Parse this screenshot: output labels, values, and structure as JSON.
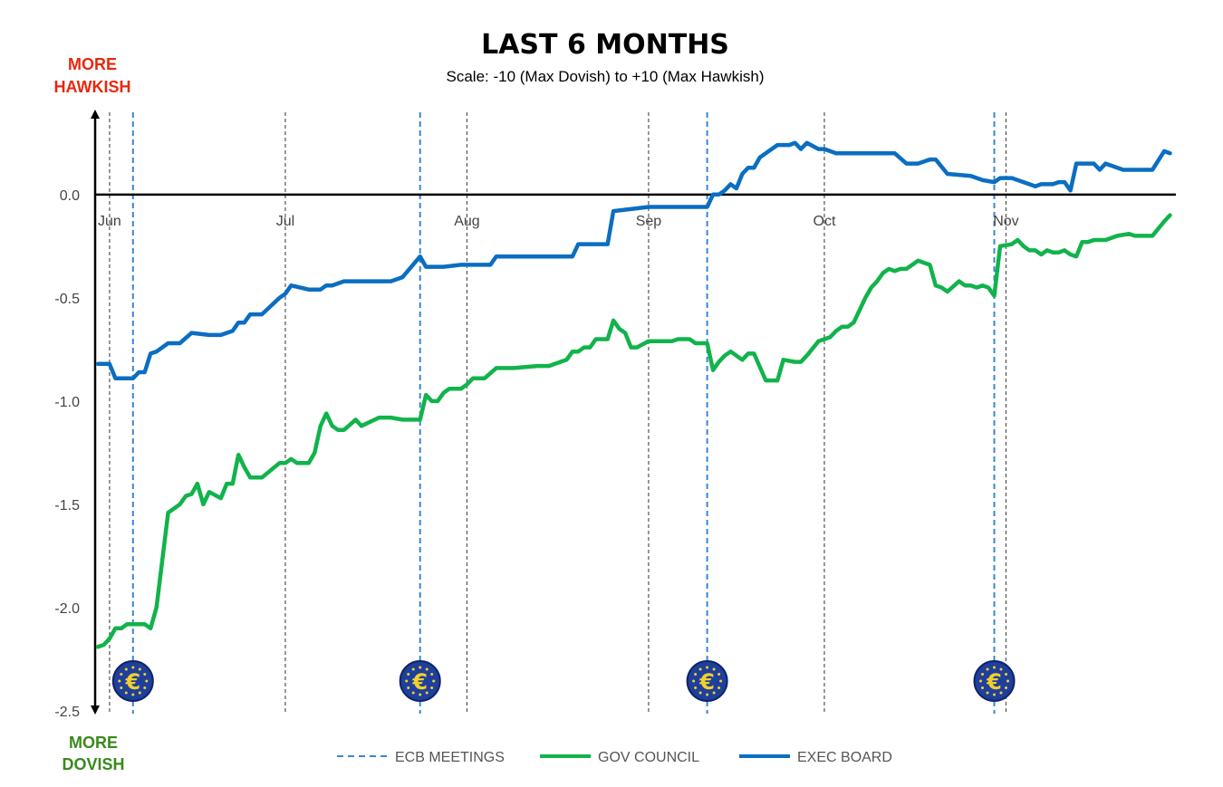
{
  "colors": {
    "gov_council": "#11b34b",
    "exec_board": "#0a6ec2",
    "ecb_meeting": "#3a86d4",
    "hawkish_label": "#e8280f",
    "dovish_label": "#3a8a1c",
    "gridline": "#555555"
  },
  "side_labels": {
    "hawkish_line1": "MORE",
    "hawkish_line2": "HAWKISH",
    "dovish_line1": "MORE",
    "dovish_line2": "DOVISH"
  },
  "chart_data": {
    "type": "line",
    "title": "LAST 6 MONTHS",
    "subtitle": "Scale: -10 (Max Dovish)  to +10 (Max Hawkish)",
    "ylim": [
      -2.5,
      0.35
    ],
    "yticks": [
      "0.0",
      "-0.5",
      "-1.0",
      "-1.5",
      "-2.0",
      "-2.5"
    ],
    "x_range_days": [
      -2,
      182
    ],
    "months": [
      {
        "label": "Jun",
        "day": 0
      },
      {
        "label": "Jul",
        "day": 30
      },
      {
        "label": "Aug",
        "day": 61
      },
      {
        "label": "Sep",
        "day": 92
      },
      {
        "label": "Oct",
        "day": 122
      },
      {
        "label": "Nov",
        "day": 153
      }
    ],
    "ecb_meetings_days": [
      4,
      53,
      102,
      151
    ],
    "series": [
      {
        "name": "EXEC BOARD",
        "x": [
          -2,
          0,
          1,
          2,
          4,
          5,
          6,
          7,
          8,
          10,
          12,
          14,
          17,
          19,
          21,
          22,
          23,
          24,
          26,
          29,
          30,
          31,
          34,
          36,
          37,
          38,
          40,
          48,
          50,
          53,
          54,
          57,
          60,
          65,
          66,
          71,
          79,
          80,
          85,
          86,
          92,
          102,
          103,
          104,
          105,
          106,
          107,
          108,
          109,
          110,
          111,
          112,
          114,
          116,
          117,
          118,
          119,
          121,
          122,
          124,
          126,
          134,
          136,
          138,
          140,
          141,
          143,
          147,
          149,
          151,
          152,
          154,
          157,
          158,
          159,
          161,
          162,
          163,
          164,
          165,
          168,
          169,
          170,
          173,
          178,
          180,
          181
        ],
        "values": [
          -0.82,
          -0.82,
          -0.89,
          -0.89,
          -0.89,
          -0.86,
          -0.86,
          -0.77,
          -0.76,
          -0.72,
          -0.72,
          -0.67,
          -0.68,
          -0.68,
          -0.66,
          -0.62,
          -0.62,
          -0.58,
          -0.58,
          -0.5,
          -0.48,
          -0.44,
          -0.46,
          -0.46,
          -0.44,
          -0.44,
          -0.42,
          -0.42,
          -0.4,
          -0.3,
          -0.35,
          -0.35,
          -0.34,
          -0.34,
          -0.3,
          -0.3,
          -0.3,
          -0.24,
          -0.24,
          -0.08,
          -0.06,
          -0.06,
          0.0,
          0.0,
          0.02,
          0.05,
          0.03,
          0.1,
          0.13,
          0.13,
          0.18,
          0.2,
          0.24,
          0.24,
          0.25,
          0.22,
          0.25,
          0.22,
          0.22,
          0.2,
          0.2,
          0.2,
          0.15,
          0.15,
          0.17,
          0.17,
          0.1,
          0.09,
          0.07,
          0.06,
          0.08,
          0.08,
          0.05,
          0.04,
          0.05,
          0.05,
          0.06,
          0.06,
          0.02,
          0.15,
          0.15,
          0.12,
          0.15,
          0.12,
          0.12,
          0.21,
          0.2
        ]
      },
      {
        "name": "GOV COUNCIL",
        "x": [
          -2,
          -1,
          0,
          1,
          2,
          3,
          4,
          5,
          6,
          7,
          8,
          10,
          11,
          12,
          13,
          14,
          15,
          16,
          17,
          19,
          20,
          21,
          22,
          23,
          24,
          25,
          26,
          29,
          30,
          31,
          32,
          34,
          35,
          36,
          37,
          38,
          39,
          40,
          42,
          43,
          46,
          48,
          50,
          52,
          53,
          54,
          55,
          56,
          57,
          58,
          60,
          61,
          62,
          64,
          66,
          67,
          69,
          73,
          75,
          76,
          78,
          79,
          80,
          81,
          82,
          83,
          84,
          85,
          86,
          87,
          88,
          89,
          90,
          92,
          93,
          94,
          95,
          96,
          97,
          98,
          99,
          100,
          101,
          102,
          103,
          104,
          105,
          106,
          107,
          108,
          109,
          110,
          112,
          113,
          114,
          115,
          117,
          118,
          119,
          121,
          122,
          123,
          124,
          125,
          126,
          127,
          128,
          129,
          130,
          131,
          132,
          133,
          134,
          135,
          136,
          137,
          138,
          139,
          140,
          141,
          142,
          143,
          145,
          146,
          147,
          148,
          149,
          150,
          151,
          152,
          154,
          155,
          156,
          157,
          158,
          159,
          160,
          161,
          162,
          163,
          164,
          165,
          166,
          167,
          168,
          170,
          172,
          174,
          175,
          176,
          178,
          180,
          181
        ],
        "values": [
          -2.19,
          -2.18,
          -2.15,
          -2.1,
          -2.1,
          -2.08,
          -2.08,
          -2.08,
          -2.08,
          -2.1,
          -2.0,
          -1.54,
          -1.52,
          -1.5,
          -1.46,
          -1.45,
          -1.4,
          -1.5,
          -1.44,
          -1.47,
          -1.4,
          -1.4,
          -1.26,
          -1.32,
          -1.37,
          -1.37,
          -1.37,
          -1.3,
          -1.3,
          -1.28,
          -1.3,
          -1.3,
          -1.25,
          -1.12,
          -1.06,
          -1.12,
          -1.14,
          -1.14,
          -1.09,
          -1.12,
          -1.08,
          -1.08,
          -1.09,
          -1.09,
          -1.09,
          -0.97,
          -1.0,
          -1.0,
          -0.96,
          -0.94,
          -0.94,
          -0.92,
          -0.89,
          -0.89,
          -0.84,
          -0.84,
          -0.84,
          -0.83,
          -0.83,
          -0.82,
          -0.8,
          -0.76,
          -0.76,
          -0.74,
          -0.74,
          -0.7,
          -0.7,
          -0.7,
          -0.61,
          -0.65,
          -0.67,
          -0.74,
          -0.74,
          -0.71,
          -0.71,
          -0.71,
          -0.71,
          -0.71,
          -0.7,
          -0.7,
          -0.7,
          -0.72,
          -0.72,
          -0.72,
          -0.85,
          -0.81,
          -0.78,
          -0.76,
          -0.78,
          -0.8,
          -0.77,
          -0.77,
          -0.9,
          -0.9,
          -0.9,
          -0.8,
          -0.81,
          -0.81,
          -0.78,
          -0.71,
          -0.7,
          -0.69,
          -0.66,
          -0.64,
          -0.64,
          -0.62,
          -0.56,
          -0.5,
          -0.45,
          -0.42,
          -0.38,
          -0.36,
          -0.37,
          -0.36,
          -0.36,
          -0.34,
          -0.32,
          -0.33,
          -0.34,
          -0.44,
          -0.45,
          -0.47,
          -0.42,
          -0.44,
          -0.44,
          -0.45,
          -0.44,
          -0.45,
          -0.49,
          -0.25,
          -0.24,
          -0.22,
          -0.25,
          -0.27,
          -0.27,
          -0.29,
          -0.27,
          -0.28,
          -0.28,
          -0.27,
          -0.29,
          -0.3,
          -0.23,
          -0.23,
          -0.22,
          -0.22,
          -0.2,
          -0.19,
          -0.2,
          -0.2,
          -0.2,
          -0.13,
          -0.1
        ]
      }
    ],
    "legend": {
      "position": "bottom",
      "entries": [
        "ECB MEETINGS",
        "GOV COUNCIL",
        "EXEC BOARD"
      ]
    },
    "meeting_icon": "euro-symbol",
    "icon_glyph": "€"
  }
}
